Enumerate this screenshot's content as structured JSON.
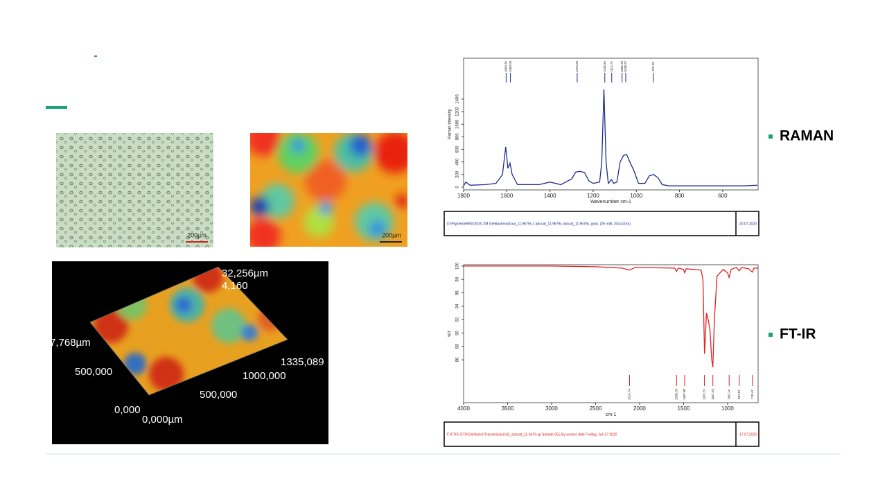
{
  "slide": {
    "labels": [
      "RAMAN",
      "FT-IR"
    ]
  },
  "images": {
    "micrograph_scale": "200µm",
    "heatmap_scale": "200µm",
    "surface_labels": [
      "32,256µm",
      "4,160",
      "7,768µm",
      "500,000",
      "1335,089",
      "1000,000",
      "500,000",
      "0,000",
      "0,000µm"
    ]
  },
  "chart_data": [
    {
      "type": "line",
      "color": "#1f2a8c",
      "xlabel": "Wavenumber cm-1",
      "ylabel": "Raman Intensity",
      "x": [
        1800,
        1790,
        1770,
        1700,
        1650,
        1620,
        1605,
        1595,
        1585,
        1575,
        1550,
        1450,
        1400,
        1350,
        1300,
        1280,
        1260,
        1240,
        1220,
        1200,
        1170,
        1160,
        1150,
        1140,
        1130,
        1115,
        1105,
        1090,
        1075,
        1060,
        1045,
        1030,
        1010,
        990,
        960,
        940,
        920,
        900,
        880,
        850,
        800,
        700,
        600,
        500,
        440
      ],
      "values": [
        20,
        80,
        30,
        40,
        60,
        200,
        640,
        300,
        380,
        200,
        40,
        40,
        80,
        40,
        130,
        240,
        250,
        230,
        100,
        60,
        80,
        400,
        1555,
        400,
        60,
        120,
        60,
        80,
        400,
        500,
        520,
        400,
        250,
        60,
        60,
        180,
        200,
        150,
        40,
        20,
        20,
        20,
        20,
        20,
        30
      ],
      "xlim": [
        1800,
        436
      ],
      "ylim": [
        -44,
        2050
      ],
      "xticks": [
        1800,
        1600,
        1400,
        1200,
        1000,
        800,
        600
      ],
      "yticks": [
        0,
        200,
        400,
        600,
        800,
        1000,
        1200,
        1400
      ],
      "peaks": [
        {
          "x": 1603,
          "label": "1603.35"
        },
        {
          "x": 1583,
          "label": "1583.09"
        },
        {
          "x": 1274,
          "label": "1274.56"
        },
        {
          "x": 1146,
          "label": "1145.84"
        },
        {
          "x": 1114,
          "label": "1113.75"
        },
        {
          "x": 1066,
          "label": "1065.70"
        },
        {
          "x": 1049,
          "label": "1048.97"
        },
        {
          "x": 922,
          "label": "922.35"
        }
      ],
      "footer": [
        "D:\\Pigment\\HWG\\2020 ZM Gleitlacke\\adcoat_11.9679s.1        adcoat_11.9679s        adcoat_11.9679s, grün,  (25 mW, 20scs/15s)",
        "20.07.2020"
      ]
    },
    {
      "type": "line",
      "color": "#e02020",
      "xlabel": "cm-1",
      "ylabel": "%T",
      "x": [
        4000,
        3000,
        2500,
        2200,
        2114,
        2050,
        1600,
        1580,
        1560,
        1500,
        1488,
        1470,
        1300,
        1280,
        1262,
        1240,
        1220,
        1200,
        1180,
        1167,
        1150,
        1120,
        1050,
        1000,
        982,
        960,
        900,
        867,
        840,
        760,
        718,
        700,
        653
      ],
      "values": [
        100,
        100,
        99.9,
        99.7,
        99.4,
        99.8,
        99.7,
        99.2,
        99.7,
        99.5,
        99,
        99.6,
        99.4,
        98,
        86.9,
        93,
        92,
        90.5,
        86,
        84.9,
        92,
        98.5,
        99.5,
        99,
        98.3,
        99.5,
        99.8,
        99.3,
        99.8,
        99.6,
        99.1,
        99.7,
        99.7
      ],
      "xlim": [
        4000,
        653
      ],
      "ylim": [
        79.6,
        100.2
      ],
      "xticks": [
        4000,
        3500,
        3000,
        2500,
        2000,
        1500,
        1000
      ],
      "yticks": [
        86,
        88,
        90,
        92,
        94,
        96,
        98,
        100
      ],
      "peaks": [
        {
          "x": 2114,
          "label": "2114.74"
        },
        {
          "x": 1580,
          "label": "1580.36"
        },
        {
          "x": 1488,
          "label": "1487.80"
        },
        {
          "x": 1263,
          "label": "1262.57"
        },
        {
          "x": 1167,
          "label": "1167.33"
        },
        {
          "x": 982,
          "label": "982.14"
        },
        {
          "x": 867,
          "label": "867.07"
        },
        {
          "x": 718,
          "label": "718.47"
        }
      ],
      "footer": [
        "F:\\FTIR 2\\TR\\Gleitlacke\\Transmission\\02_adcoat_11-9679.sp        Sample 055 By werner date Freitag, Juli 17 2020",
        "17.07.2020"
      ]
    }
  ]
}
